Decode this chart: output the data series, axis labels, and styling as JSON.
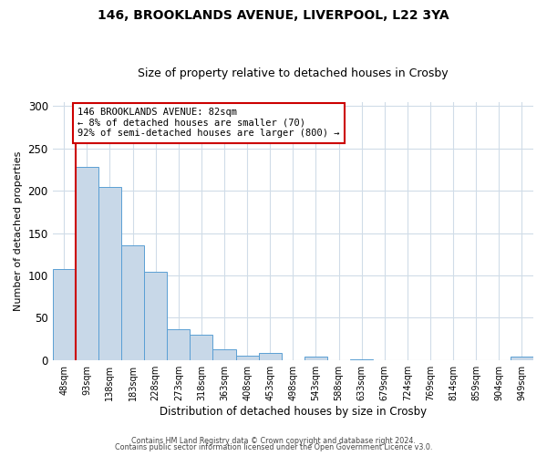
{
  "title": "146, BROOKLANDS AVENUE, LIVERPOOL, L22 3YA",
  "subtitle": "Size of property relative to detached houses in Crosby",
  "xlabel": "Distribution of detached houses by size in Crosby",
  "ylabel": "Number of detached properties",
  "bar_labels": [
    "48sqm",
    "93sqm",
    "138sqm",
    "183sqm",
    "228sqm",
    "273sqm",
    "318sqm",
    "363sqm",
    "408sqm",
    "453sqm",
    "498sqm",
    "543sqm",
    "588sqm",
    "633sqm",
    "679sqm",
    "724sqm",
    "769sqm",
    "814sqm",
    "859sqm",
    "904sqm",
    "949sqm"
  ],
  "bar_values": [
    107,
    228,
    205,
    135,
    104,
    36,
    30,
    13,
    5,
    8,
    0,
    4,
    0,
    1,
    0,
    0,
    0,
    0,
    0,
    0,
    4
  ],
  "bar_color": "#c8d8e8",
  "bar_edge_color": "#5a9fd4",
  "highlight_line_color": "#cc0000",
  "annotation_text": "146 BROOKLANDS AVENUE: 82sqm\n← 8% of detached houses are smaller (70)\n92% of semi-detached houses are larger (800) →",
  "annotation_box_edge_color": "#cc0000",
  "ylim": [
    0,
    305
  ],
  "yticks": [
    0,
    50,
    100,
    150,
    200,
    250,
    300
  ],
  "background_color": "#ffffff",
  "footer_line1": "Contains HM Land Registry data © Crown copyright and database right 2024.",
  "footer_line2": "Contains public sector information licensed under the Open Government Licence v3.0.",
  "title_fontsize": 10,
  "subtitle_fontsize": 9,
  "tick_label_fontsize": 7,
  "ylabel_fontsize": 8,
  "xlabel_fontsize": 8.5
}
